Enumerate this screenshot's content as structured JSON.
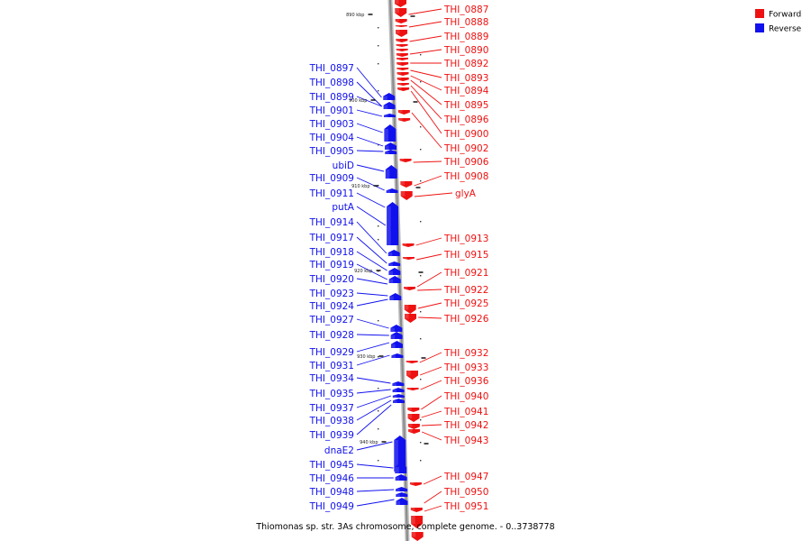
{
  "caption": "Thiomonas sp. str. 3As chromosome, complete genome. - 0..3738778",
  "legend": [
    {
      "label": "Forward",
      "color": "#ee1111"
    },
    {
      "label": "Reverse",
      "color": "#1111ee"
    }
  ],
  "colors": {
    "forward": "#ee1111",
    "reverse": "#1111ee",
    "backbone": "#8a8a8a"
  },
  "ticks": [
    "890 kbp",
    "900 kbp",
    "910 kbp",
    "920 kbp",
    "930 kbp",
    "940 kbp"
  ],
  "forward_labels": [
    "THI_0887",
    "THI_0888",
    "THI_0889",
    "THI_0890",
    "THI_0892",
    "THI_0893",
    "THI_0894",
    "THI_0895",
    "THI_0896",
    "THI_0900",
    "THI_0902",
    "THI_0906",
    "THI_0908",
    "glyA",
    "THI_0913",
    "THI_0915",
    "THI_0921",
    "THI_0922",
    "THI_0925",
    "THI_0926",
    "THI_0932",
    "THI_0933",
    "THI_0936",
    "THI_0940",
    "THI_0941",
    "THI_0942",
    "THI_0943",
    "THI_0947",
    "THI_0950",
    "THI_0951"
  ],
  "reverse_labels": [
    "THI_0897",
    "THI_0898",
    "THI_0899",
    "THI_0901",
    "THI_0903",
    "THI_0904",
    "THI_0905",
    "ubiD",
    "THI_0909",
    "THI_0911",
    "putA",
    "THI_0914",
    "THI_0917",
    "THI_0918",
    "THI_0919",
    "THI_0920",
    "THI_0923",
    "THI_0924",
    "THI_0927",
    "THI_0928",
    "THI_0929",
    "THI_0931",
    "THI_0934",
    "THI_0935",
    "THI_0937",
    "THI_0938",
    "THI_0939",
    "dnaE2",
    "THI_0945",
    "THI_0946",
    "THI_0948",
    "THI_0949"
  ]
}
